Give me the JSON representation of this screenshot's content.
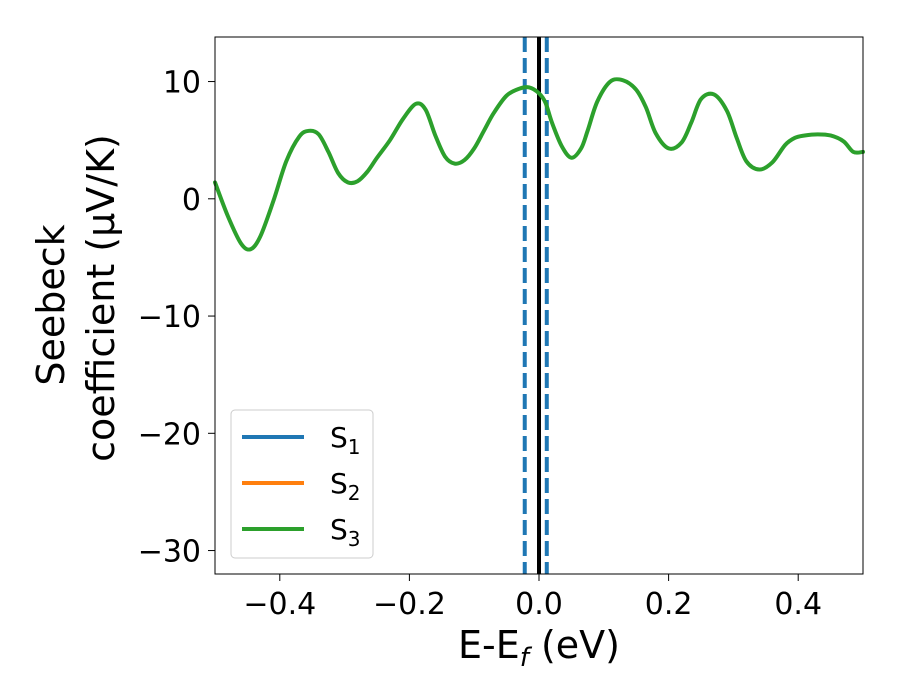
{
  "chart_data": {
    "type": "line",
    "title": "",
    "xlabel_main": "E-E",
    "xlabel_sub": "f",
    "xlabel_unit": " (eV)",
    "ylabel_line1": "Seebeck",
    "ylabel_line2": "coefficient  (μV/K)",
    "xlim": [
      -0.5,
      0.5
    ],
    "ylim": [
      -32,
      13.8
    ],
    "xticks": [
      {
        "value": -0.4,
        "label": "−0.4"
      },
      {
        "value": -0.2,
        "label": "−0.2"
      },
      {
        "value": 0.0,
        "label": "0.0"
      },
      {
        "value": 0.2,
        "label": "0.2"
      },
      {
        "value": 0.4,
        "label": "0.4"
      }
    ],
    "yticks": [
      {
        "value": 10,
        "label": "10"
      },
      {
        "value": 0,
        "label": "0"
      },
      {
        "value": -10,
        "label": "−10"
      },
      {
        "value": -20,
        "label": "−20"
      },
      {
        "value": -30,
        "label": "−30"
      }
    ],
    "grid": false,
    "legend_position": "lower-left",
    "legend": [
      {
        "base": "S",
        "sub": "1",
        "color": "#1f77b4"
      },
      {
        "base": "S",
        "sub": "2",
        "color": "#ff7f0e"
      },
      {
        "base": "S",
        "sub": "3",
        "color": "#2ca02c"
      }
    ],
    "series": [
      {
        "color": "#2ca02c",
        "x": [
          -0.5,
          -0.48,
          -0.46,
          -0.445,
          -0.43,
          -0.41,
          -0.39,
          -0.37,
          -0.355,
          -0.34,
          -0.325,
          -0.31,
          -0.295,
          -0.28,
          -0.265,
          -0.25,
          -0.23,
          -0.21,
          -0.19,
          -0.175,
          -0.16,
          -0.145,
          -0.13,
          -0.115,
          -0.1,
          -0.085,
          -0.07,
          -0.05,
          -0.03,
          -0.015,
          0.0,
          0.01,
          0.02,
          0.035,
          0.05,
          0.065,
          0.075,
          0.09,
          0.11,
          0.13,
          0.15,
          0.165,
          0.18,
          0.2,
          0.22,
          0.235,
          0.25,
          0.27,
          0.29,
          0.305,
          0.32,
          0.34,
          0.36,
          0.38,
          0.395,
          0.41,
          0.43,
          0.45,
          0.47,
          0.485,
          0.5
        ],
        "y": [
          1.4,
          -1.5,
          -3.8,
          -4.3,
          -3.2,
          -0.2,
          3.2,
          5.3,
          5.8,
          5.5,
          4.0,
          2.2,
          1.4,
          1.5,
          2.3,
          3.5,
          5.0,
          6.8,
          8.1,
          7.6,
          5.4,
          3.6,
          3.0,
          3.3,
          4.3,
          5.8,
          7.3,
          8.8,
          9.4,
          9.5,
          9.0,
          8.2,
          6.5,
          4.5,
          3.5,
          4.3,
          5.8,
          8.3,
          10.0,
          10.1,
          9.3,
          7.8,
          5.6,
          4.3,
          4.8,
          6.5,
          8.5,
          8.9,
          7.5,
          5.2,
          3.2,
          2.5,
          3.1,
          4.6,
          5.2,
          5.4,
          5.5,
          5.4,
          4.9,
          4.0,
          4.0
        ]
      }
    ],
    "vlines": [
      {
        "x": -0.022,
        "color": "#1f77b4",
        "style": "dashed"
      },
      {
        "x": 0.0,
        "color": "#000000",
        "style": "solid"
      },
      {
        "x": 0.012,
        "color": "#1f77b4",
        "style": "dashed"
      }
    ]
  }
}
